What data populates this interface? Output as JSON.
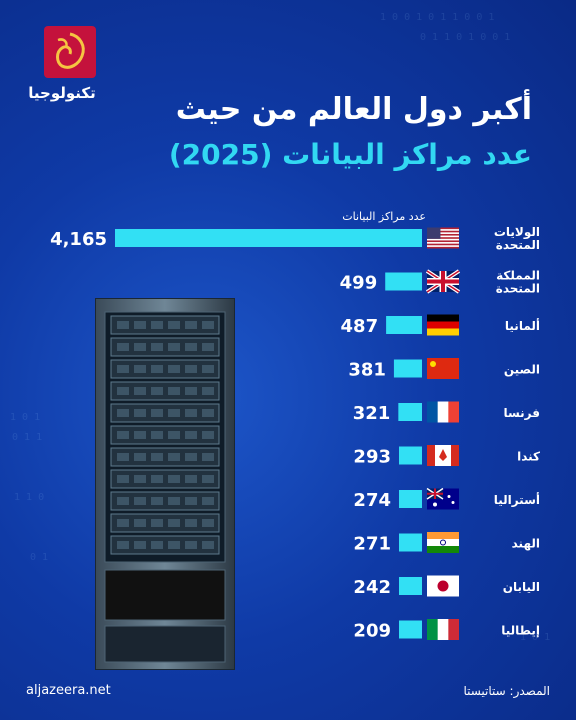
{
  "brand": {
    "logo_text": "الجزيرة",
    "section": "تكنولوجيا"
  },
  "title": {
    "line1": "أكبر دول العالم من حيث",
    "line2": "عدد مراكز البيانات (2025)"
  },
  "footer": {
    "site": "aljazeera.net",
    "source": "المصدر: ستاتيستا"
  },
  "colors": {
    "bar": "#32e0f4",
    "background": "#0f3aa6",
    "accent": "#32d8f2"
  },
  "chart_data": {
    "type": "bar",
    "orientation": "horizontal",
    "series_label": "عدد مراكز البيانات",
    "categories": [
      {
        "name_lines": [
          "الولايات",
          "المتحدة"
        ],
        "flag": "us",
        "value": 4165,
        "label": "4,165"
      },
      {
        "name_lines": [
          "المملكة",
          "المتحدة"
        ],
        "flag": "gb",
        "value": 499,
        "label": "499"
      },
      {
        "name_lines": [
          "ألمانيا"
        ],
        "flag": "de",
        "value": 487,
        "label": "487"
      },
      {
        "name_lines": [
          "الصين"
        ],
        "flag": "cn",
        "value": 381,
        "label": "381"
      },
      {
        "name_lines": [
          "فرنسا"
        ],
        "flag": "fr",
        "value": 321,
        "label": "321"
      },
      {
        "name_lines": [
          "كندا"
        ],
        "flag": "ca",
        "value": 293,
        "label": "293"
      },
      {
        "name_lines": [
          "أستراليا"
        ],
        "flag": "au",
        "value": 274,
        "label": "274"
      },
      {
        "name_lines": [
          "الهند"
        ],
        "flag": "in",
        "value": 271,
        "label": "271"
      },
      {
        "name_lines": [
          "اليابان"
        ],
        "flag": "jp",
        "value": 242,
        "label": "242"
      },
      {
        "name_lines": [
          "إيطاليا"
        ],
        "flag": "it",
        "value": 209,
        "label": "209"
      }
    ]
  }
}
